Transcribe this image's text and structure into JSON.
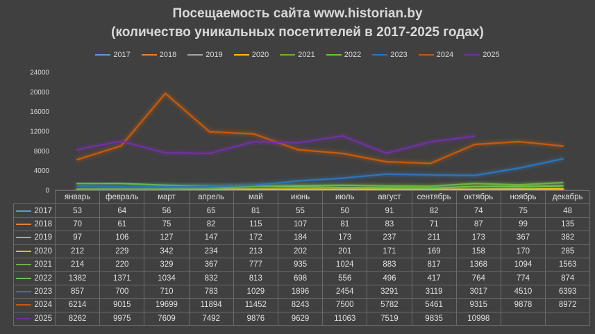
{
  "chart_data": {
    "type": "line",
    "title": "Посещаемость сайта www.historian.by",
    "subtitle": "(количество уникальных посетителей в 2017-2025 годах)",
    "categories": [
      "январь",
      "февраль",
      "март",
      "апрель",
      "май",
      "июнь",
      "июль",
      "август",
      "сентябрь",
      "октябрь",
      "ноябрь",
      "декабрь"
    ],
    "y_ticks": [
      "0",
      "4000",
      "8000",
      "12000",
      "16000",
      "20000",
      "24000"
    ],
    "ylim": [
      0,
      24000
    ],
    "legend_position": "top",
    "series": [
      {
        "name": "2017",
        "color": "#5b9bd5",
        "values": [
          53,
          64,
          56,
          65,
          81,
          55,
          50,
          91,
          82,
          74,
          75,
          48
        ]
      },
      {
        "name": "2018",
        "color": "#ed7d31",
        "values": [
          70,
          61,
          75,
          82,
          115,
          107,
          81,
          83,
          71,
          87,
          99,
          135
        ]
      },
      {
        "name": "2019",
        "color": "#a5a5a5",
        "values": [
          97,
          106,
          127,
          147,
          172,
          184,
          173,
          237,
          211,
          173,
          367,
          382
        ]
      },
      {
        "name": "2020",
        "color": "#ffc000",
        "values": [
          212,
          229,
          342,
          234,
          213,
          202,
          201,
          171,
          169,
          158,
          170,
          285
        ]
      },
      {
        "name": "2021",
        "color": "#70ad47",
        "values": [
          214,
          220,
          329,
          367,
          777,
          935,
          1024,
          883,
          817,
          1368,
          1094,
          1563
        ]
      },
      {
        "name": "2022",
        "color": "#6cc04a",
        "values": [
          1382,
          1371,
          1034,
          832,
          813,
          698,
          556,
          496,
          417,
          764,
          774,
          874
        ]
      },
      {
        "name": "2023",
        "color": "#2e75b6",
        "values": [
          857,
          700,
          710,
          783,
          1029,
          1896,
          2454,
          3291,
          3119,
          3017,
          4510,
          6393
        ]
      },
      {
        "name": "2024",
        "color": "#c55a11",
        "values": [
          6214,
          9015,
          19699,
          11894,
          11452,
          8243,
          7500,
          5782,
          5461,
          9315,
          9878,
          8972
        ]
      },
      {
        "name": "2025",
        "color": "#7030a0",
        "values": [
          8262,
          9975,
          7609,
          7492,
          9876,
          9629,
          11063,
          7519,
          9835,
          10998,
          null,
          null
        ]
      }
    ]
  }
}
